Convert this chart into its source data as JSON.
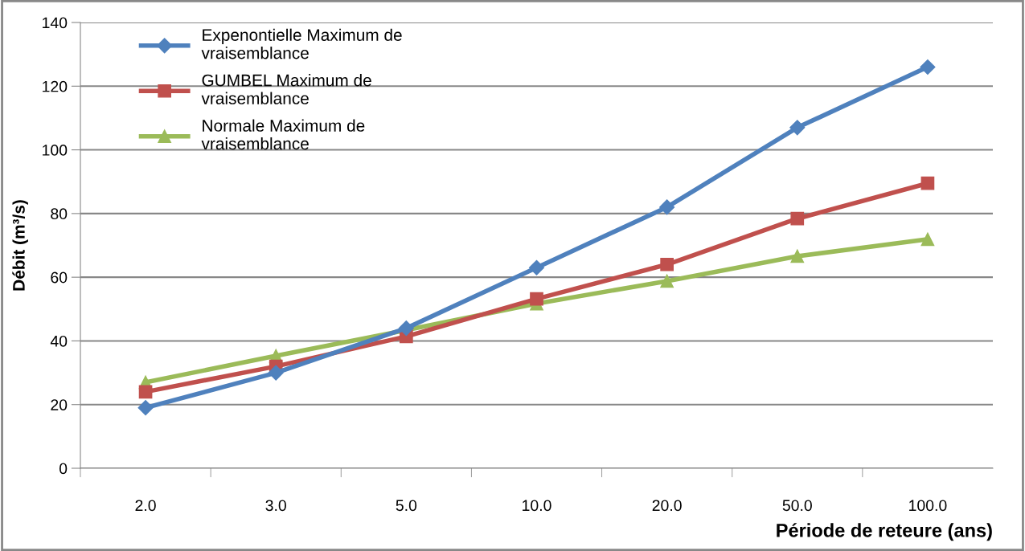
{
  "chart_data": {
    "type": "line",
    "xlabel": "Période de reteure (ans)",
    "ylabel": "Débit (m³/s)",
    "categories": [
      "2.0",
      "3.0",
      "5.0",
      "10.0",
      "20.0",
      "50.0",
      "100.0"
    ],
    "series": [
      {
        "name": "Expenontielle Maximum de vraisemblance",
        "color": "#4f81bd",
        "marker": "diamond",
        "values": [
          19,
          30,
          44,
          63,
          82,
          107,
          126
        ]
      },
      {
        "name": "GUMBEL Maximum de vraisemblance",
        "color": "#c0504d",
        "marker": "square",
        "values": [
          24,
          32,
          41.4,
          53.2,
          64,
          78.4,
          89.5
        ]
      },
      {
        "name": "Normale Maximum de vraisemblance",
        "color": "#9bbb59",
        "marker": "triangle",
        "values": [
          27,
          35.3,
          43.4,
          51.7,
          58.8,
          66.6,
          71.9
        ]
      }
    ],
    "ylim": [
      0,
      140
    ],
    "yticks": [
      0,
      20,
      40,
      60,
      80,
      100,
      120,
      140
    ],
    "grid": "y",
    "legend": "top left",
    "line_style": "solid"
  }
}
